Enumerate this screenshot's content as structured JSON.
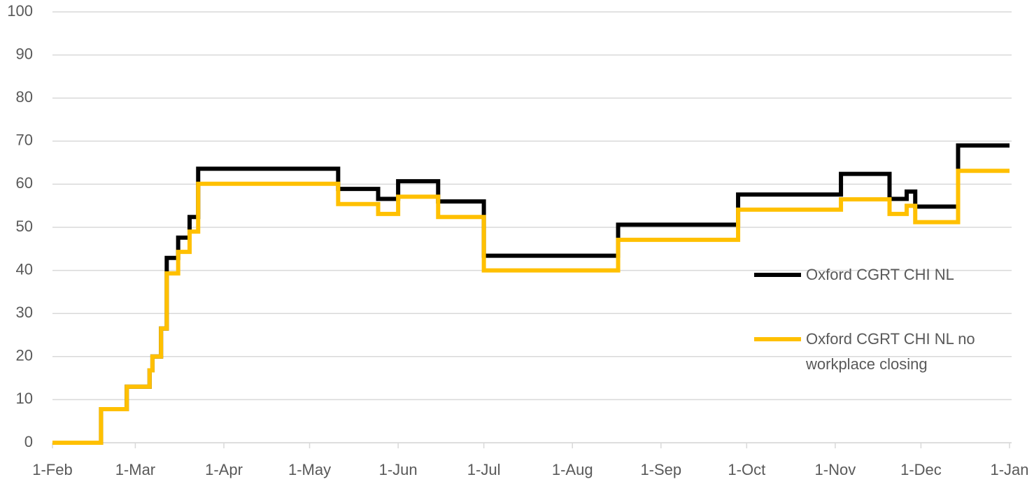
{
  "chart_data": {
    "type": "line",
    "step": true,
    "x": [
      0,
      17,
      26,
      34,
      35,
      38,
      40,
      44,
      48,
      51,
      100,
      114,
      121,
      135,
      151,
      198,
      240,
      276,
      293,
      299,
      302,
      317,
      335
    ],
    "series": [
      {
        "name": "Oxford CGRT CHI NL",
        "color": "#000000",
        "values": [
          0,
          7.8,
          13,
          16.8,
          20,
          26.5,
          42.9,
          47.6,
          52.4,
          63.6,
          58.9,
          56.6,
          60.7,
          56,
          43.4,
          50.6,
          57.6,
          62.4,
          56.6,
          58.3,
          54.8,
          69,
          69
        ]
      },
      {
        "name": "Oxford CGRT CHI NL no workplace closing",
        "color": "#ffc000",
        "values": [
          0,
          7.8,
          13,
          16.8,
          20,
          26.5,
          39.3,
          44.3,
          49,
          60.1,
          55.4,
          53.1,
          57.1,
          52.4,
          40,
          47.1,
          54.1,
          56.5,
          53.1,
          55,
          51.2,
          63.1,
          63.1
        ]
      }
    ],
    "xlim": [
      0,
      335
    ],
    "xticks": [
      {
        "value": 0,
        "label": "1-Feb"
      },
      {
        "value": 29,
        "label": "1-Mar"
      },
      {
        "value": 60,
        "label": "1-Apr"
      },
      {
        "value": 90,
        "label": "1-May"
      },
      {
        "value": 121,
        "label": "1-Jun"
      },
      {
        "value": 151,
        "label": "1-Jul"
      },
      {
        "value": 182,
        "label": "1-Aug"
      },
      {
        "value": 213,
        "label": "1-Sep"
      },
      {
        "value": 243,
        "label": "1-Oct"
      },
      {
        "value": 274,
        "label": "1-Nov"
      },
      {
        "value": 304,
        "label": "1-Dec"
      },
      {
        "value": 335,
        "label": "1-Jan"
      }
    ],
    "ylim": [
      0,
      100
    ],
    "yticks": [
      0,
      10,
      20,
      30,
      40,
      50,
      60,
      70,
      80,
      90,
      100
    ],
    "grid": true,
    "legend": "right"
  }
}
